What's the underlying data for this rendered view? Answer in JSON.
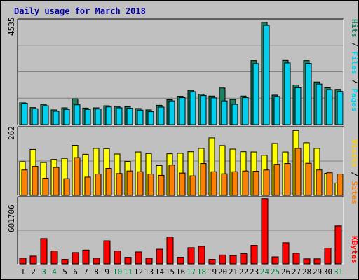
{
  "chart_data": {
    "type": "bar",
    "title": "Daily usage for March 2018",
    "categories": [
      "1",
      "2",
      "3",
      "4",
      "5",
      "6",
      "7",
      "8",
      "9",
      "10",
      "11",
      "12",
      "13",
      "14",
      "15",
      "16",
      "17",
      "18",
      "19",
      "20",
      "21",
      "22",
      "23",
      "24",
      "25",
      "26",
      "27",
      "28",
      "29",
      "30",
      "31"
    ],
    "weekend_days": [
      "3",
      "4",
      "10",
      "11",
      "17",
      "18",
      "24",
      "25",
      "31"
    ],
    "panels": [
      {
        "id": "top",
        "max_label": "4535",
        "ylim": [
          0,
          4535
        ],
        "grid": true,
        "legend": [
          "Pages",
          "Files",
          "Hits"
        ],
        "series": [
          {
            "name": "Hits",
            "color": "#1f7f5f",
            "values": [
              990,
              740,
              880,
              640,
              730,
              1120,
              720,
              730,
              820,
              790,
              780,
              700,
              640,
              840,
              1080,
              1230,
              1490,
              1320,
              1240,
              1590,
              1090,
              1240,
              2780,
              4450,
              1280,
              2790,
              1720,
              2780,
              1850,
              1600,
              1530
            ]
          },
          {
            "name": "Files",
            "color": "#00d0f0",
            "values": [
              930,
              690,
              820,
              580,
              660,
              860,
              660,
              680,
              770,
              730,
              710,
              630,
              560,
              760,
              1030,
              1170,
              1430,
              1260,
              1160,
              1030,
              880,
              1170,
              2650,
              4320,
              1220,
              2680,
              1600,
              2660,
              1760,
              1520,
              1440
            ]
          },
          {
            "name": "Pages",
            "color": "#0060d0",
            "values": []
          }
        ]
      },
      {
        "id": "middle",
        "max_label": "262",
        "ylim": [
          0,
          262
        ],
        "grid": true,
        "legend": [
          "Sites",
          "Visits"
        ],
        "series": [
          {
            "name": "Visits",
            "color": "#ffff00",
            "values": [
              131,
              179,
              128,
              140,
              144,
              195,
              160,
              183,
              182,
              161,
              132,
              169,
              163,
              116,
              162,
              164,
              170,
              183,
              224,
              194,
              180,
              170,
              169,
              156,
              202,
              169,
              253,
              205,
              183,
              86,
              48
            ]
          },
          {
            "name": "Sites",
            "color": "#ff8000",
            "values": [
              99,
              113,
              67,
              109,
              65,
              147,
              71,
              83,
              105,
              85,
              95,
              92,
              83,
              78,
              118,
              87,
              76,
              124,
              92,
              84,
              92,
              95,
              94,
              99,
              121,
              124,
              183,
              125,
              99,
              88,
              83
            ]
          }
        ]
      },
      {
        "id": "bottom",
        "max_label": "601706",
        "ylim": [
          0,
          601706
        ],
        "grid": true,
        "legend": [
          "KBytes"
        ],
        "series": [
          {
            "name": "KBytes",
            "color": "#ff0000",
            "values": [
              52000,
              71000,
              231000,
              118000,
              41000,
              103000,
              126000,
              52000,
              211000,
              118000,
              60000,
              109000,
              52000,
              134000,
              245000,
              60000,
              148000,
              160000,
              41000,
              81000,
              76000,
              93000,
              169000,
              597000,
              64000,
              193000,
              97000,
              46000,
              46000,
              144000,
              347000
            ]
          }
        ]
      }
    ]
  }
}
